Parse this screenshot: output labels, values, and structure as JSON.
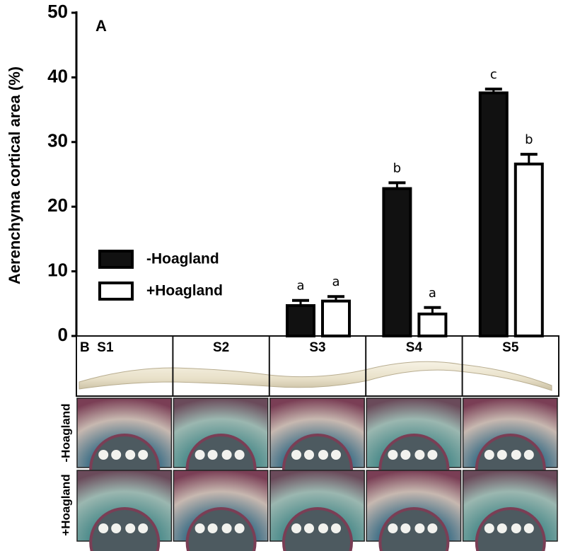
{
  "chart_data": {
    "type": "bar",
    "panel_label": "A",
    "ylabel": "Aerenchyma cortical area (%)",
    "categories": [
      "S1",
      "S2",
      "S3",
      "S4",
      "S5"
    ],
    "series": [
      {
        "name": "-Hoagland",
        "color": "#111111",
        "values": [
          null,
          null,
          4.7,
          22.8,
          37.6
        ],
        "errors": [
          null,
          null,
          0.8,
          0.9,
          0.6
        ],
        "letters": [
          null,
          null,
          "a",
          "b",
          "c"
        ]
      },
      {
        "name": "+Hoagland",
        "color": "#ffffff",
        "values": [
          null,
          null,
          5.4,
          3.4,
          26.6
        ],
        "errors": [
          null,
          null,
          0.7,
          1.0,
          1.5
        ],
        "letters": [
          null,
          null,
          "a",
          "a",
          "b"
        ]
      }
    ],
    "ylim": [
      0,
      50
    ],
    "yticks": [
      0,
      10,
      20,
      30,
      40,
      50
    ]
  },
  "panel_b": {
    "label": "B",
    "row_labels": [
      "-Hoagland",
      "+Hoagland"
    ]
  }
}
